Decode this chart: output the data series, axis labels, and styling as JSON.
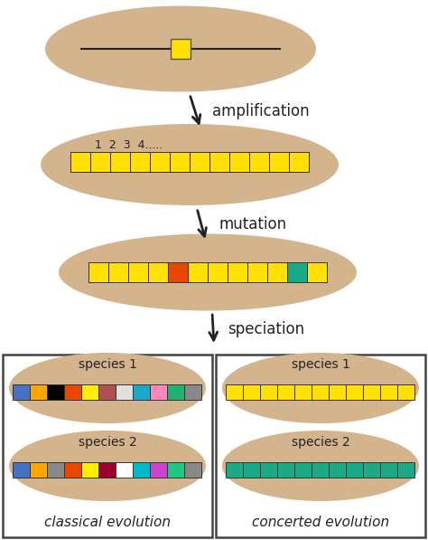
{
  "bg_color": "#ffffff",
  "ellipse_color": "#d4b48c",
  "yellow": "#FFE000",
  "orange_red": "#E84800",
  "teal": "#1AAA88",
  "arrow_color": "#222222",
  "title1": "amplification",
  "title2": "mutation",
  "title3": "speciation",
  "label_classical": "classical evolution",
  "label_concerted": "concerted evolution",
  "species1_label": "species 1",
  "species2_label": "species 2",
  "classical_sp1_colors": [
    "#4472C4",
    "#FFA500",
    "#000000",
    "#E84800",
    "#FFEE00",
    "#B05050",
    "#E0E0E0",
    "#1AA8C8",
    "#FF88BB",
    "#20B070",
    "#888888"
  ],
  "classical_sp2_colors": [
    "#4472C4",
    "#FFA500",
    "#888888",
    "#E84800",
    "#FFEE00",
    "#990030",
    "#FFFFFF",
    "#00B8C8",
    "#CC44CC",
    "#20C888",
    "#888888"
  ],
  "concerted_sp1_colors": [
    "#FFE000",
    "#FFE000",
    "#FFE000",
    "#FFE000",
    "#FFE000",
    "#FFE000",
    "#FFE000",
    "#FFE000",
    "#FFE000",
    "#FFE000",
    "#FFE000"
  ],
  "concerted_sp2_colors": [
    "#1AAA88",
    "#1AAA88",
    "#1AAA88",
    "#1AAA88",
    "#1AAA88",
    "#1AAA88",
    "#1AAA88",
    "#1AAA88",
    "#1AAA88",
    "#1AAA88",
    "#1AAA88"
  ],
  "mutation_colors": [
    "#FFE000",
    "#FFE000",
    "#FFE000",
    "#FFE000",
    "#E84800",
    "#FFE000",
    "#FFE000",
    "#FFE000",
    "#FFE000",
    "#FFE000",
    "#1AAA88",
    "#FFE000"
  ],
  "amplification_colors": [
    "#FFE000",
    "#FFE000",
    "#FFE000",
    "#FFE000",
    "#FFE000",
    "#FFE000",
    "#FFE000",
    "#FFE000",
    "#FFE000",
    "#FFE000",
    "#FFE000",
    "#FFE000"
  ],
  "n_amp": 12,
  "n_mut": 12,
  "n_classical": 11,
  "n_concerted_sp1": 11,
  "n_concerted_sp2": 11
}
